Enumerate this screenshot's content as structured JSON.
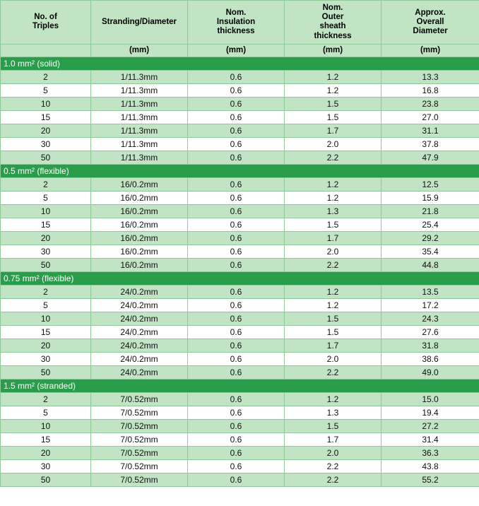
{
  "table": {
    "colors": {
      "header_bg": "#c0e4c4",
      "section_bg": "#2a9d4a",
      "section_text": "#ffffff",
      "row_even_bg": "#c0e4c4",
      "row_odd_bg": "#ffffff",
      "border": "#8fc999",
      "text": "#111111"
    },
    "columns": [
      {
        "label": "No. of\nTriples",
        "unit": "",
        "width": 128
      },
      {
        "label": "Stranding/Diameter",
        "unit": "(mm)",
        "width": 137
      },
      {
        "label": "Nom.\nInsulation\nthickness",
        "unit": "(mm)",
        "width": 137
      },
      {
        "label": "Nom.\nOuter\nsheath\nthickness",
        "unit": "(mm)",
        "width": 137
      },
      {
        "label": "Approx.\nOverall\nDiameter",
        "unit": "(mm)",
        "width": 139
      }
    ],
    "sections": [
      {
        "title": "1.0 mm² (solid)",
        "rows": [
          [
            "2",
            "1/11.3mm",
            "0.6",
            "1.2",
            "13.3"
          ],
          [
            "5",
            "1/11.3mm",
            "0.6",
            "1.2",
            "16.8"
          ],
          [
            "10",
            "1/11.3mm",
            "0.6",
            "1.5",
            "23.8"
          ],
          [
            "15",
            "1/11.3mm",
            "0.6",
            "1.5",
            "27.0"
          ],
          [
            "20",
            "1/11.3mm",
            "0.6",
            "1.7",
            "31.1"
          ],
          [
            "30",
            "1/11.3mm",
            "0.6",
            "2.0",
            "37.8"
          ],
          [
            "50",
            "1/11.3mm",
            "0.6",
            "2.2",
            "47.9"
          ]
        ]
      },
      {
        "title": "0.5 mm² (flexible)",
        "rows": [
          [
            "2",
            "16/0.2mm",
            "0.6",
            "1.2",
            "12.5"
          ],
          [
            "5",
            "16/0.2mm",
            "0.6",
            "1.2",
            "15.9"
          ],
          [
            "10",
            "16/0.2mm",
            "0.6",
            "1.3",
            "21.8"
          ],
          [
            "15",
            "16/0.2mm",
            "0.6",
            "1.5",
            "25.4"
          ],
          [
            "20",
            "16/0.2mm",
            "0.6",
            "1.7",
            "29.2"
          ],
          [
            "30",
            "16/0.2mm",
            "0.6",
            "2.0",
            "35.4"
          ],
          [
            "50",
            "16/0.2mm",
            "0.6",
            "2.2",
            "44.8"
          ]
        ]
      },
      {
        "title": "0.75 mm² (flexible)",
        "rows": [
          [
            "2",
            "24/0.2mm",
            "0.6",
            "1.2",
            "13.5"
          ],
          [
            "5",
            "24/0.2mm",
            "0.6",
            "1.2",
            "17.2"
          ],
          [
            "10",
            "24/0.2mm",
            "0.6",
            "1.5",
            "24.3"
          ],
          [
            "15",
            "24/0.2mm",
            "0.6",
            "1.5",
            "27.6"
          ],
          [
            "20",
            "24/0.2mm",
            "0.6",
            "1.7",
            "31.8"
          ],
          [
            "30",
            "24/0.2mm",
            "0.6",
            "2.0",
            "38.6"
          ],
          [
            "50",
            "24/0.2mm",
            "0.6",
            "2.2",
            "49.0"
          ]
        ]
      },
      {
        "title": "1.5 mm² (stranded)",
        "rows": [
          [
            "2",
            "7/0.52mm",
            "0.6",
            "1.2",
            "15.0"
          ],
          [
            "5",
            "7/0.52mm",
            "0.6",
            "1.3",
            "19.4"
          ],
          [
            "10",
            "7/0.52mm",
            "0.6",
            "1.5",
            "27.2"
          ],
          [
            "15",
            "7/0.52mm",
            "0.6",
            "1.7",
            "31.4"
          ],
          [
            "20",
            "7/0.52mm",
            "0.6",
            "2.0",
            "36.3"
          ],
          [
            "30",
            "7/0.52mm",
            "0.6",
            "2.2",
            "43.8"
          ],
          [
            "50",
            "7/0.52mm",
            "0.6",
            "2.2",
            "55.2"
          ]
        ]
      }
    ]
  }
}
